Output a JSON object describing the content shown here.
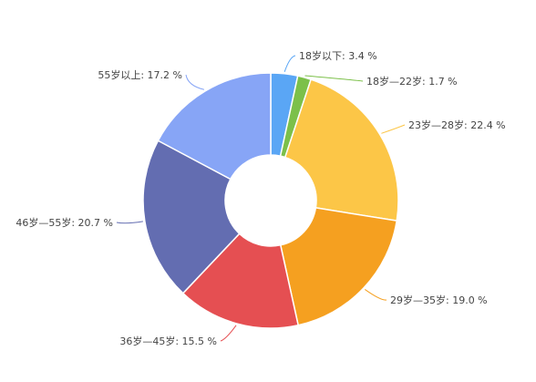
{
  "chart_data": {
    "type": "pie",
    "variant": "donut",
    "legend": "none",
    "unit": "%",
    "slices": [
      {
        "label": "18岁以下",
        "value": 3.4,
        "display": "18岁以下: 3.4 %",
        "color": "#5aa6f5"
      },
      {
        "label": "18岁—22岁",
        "value": 1.7,
        "display": "18岁—22岁: 1.7 %",
        "color": "#7cc04a"
      },
      {
        "label": "23岁—28岁",
        "value": 22.4,
        "display": "23岁—28岁: 22.4 %",
        "color": "#fcc647"
      },
      {
        "label": "29岁—35岁",
        "value": 19.0,
        "display": "29岁—35岁: 19.0 %",
        "color": "#f5a020"
      },
      {
        "label": "36岁—45岁",
        "value": 15.5,
        "display": "36岁—45岁: 15.5 %",
        "color": "#e54f52"
      },
      {
        "label": "46岁—55岁",
        "value": 20.7,
        "display": "46岁—55岁: 20.7 %",
        "color": "#636db1"
      },
      {
        "label": "55岁以上",
        "value": 17.2,
        "display": "55岁以上: 17.2 %",
        "color": "#87a5f6"
      }
    ]
  }
}
